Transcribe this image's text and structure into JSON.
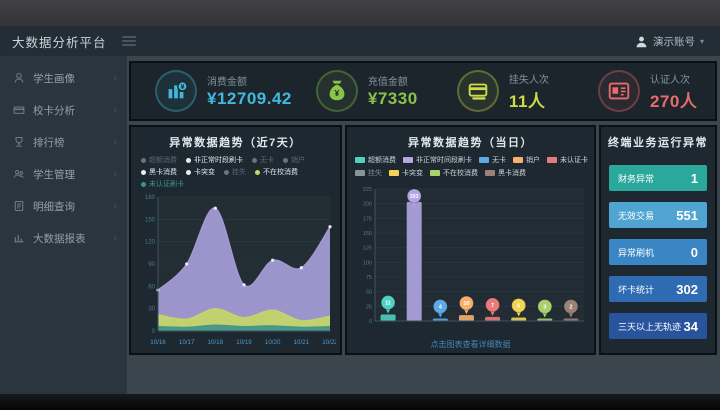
{
  "header": {
    "title": "大数据分析平台",
    "menu_icon": "hamburger-icon",
    "user": {
      "icon": "user-icon",
      "name": "演示账号",
      "caret": "▾"
    }
  },
  "sidebar": {
    "chevron": "›",
    "items": [
      {
        "label": "学生画像",
        "icon": "student-portrait-icon"
      },
      {
        "label": "校卡分析",
        "icon": "card-analysis-icon"
      },
      {
        "label": "排行榜",
        "icon": "ranking-icon"
      },
      {
        "label": "学生管理",
        "icon": "student-manage-icon"
      },
      {
        "label": "明细查询",
        "icon": "detail-query-icon"
      },
      {
        "label": "大数据报表",
        "icon": "report-icon"
      }
    ]
  },
  "kpis": [
    {
      "label": "消费金额",
      "value": "¥12709.42",
      "color": "#41b9dd",
      "icon": "consumption-icon"
    },
    {
      "label": "充值金额",
      "value": "¥7330",
      "color": "#8bc34a",
      "icon": "money-bag-icon"
    },
    {
      "label": "挂失人次",
      "value": "11人",
      "color": "#cfdc49",
      "icon": "card-loss-icon"
    },
    {
      "label": "认证人次",
      "value": "270人",
      "color": "#e96b6b",
      "icon": "id-card-icon"
    }
  ],
  "chart_data": [
    {
      "type": "area",
      "title": "异常数据趋势（近7天）",
      "x": [
        "10/16",
        "10/17",
        "10/18",
        "10/19",
        "10/20",
        "10/21",
        "10/22"
      ],
      "ylim": [
        0,
        180
      ],
      "yticks": [
        0,
        30,
        60,
        90,
        120,
        150,
        180
      ],
      "grid": true,
      "legend_position": "top",
      "legend_rows": [
        [
          {
            "label": "超额消费",
            "dot": "#66757e",
            "state": "dim"
          },
          {
            "label": "非正常时段刷卡",
            "dot": "#e8eef2",
            "state": "on"
          },
          {
            "label": "无卡",
            "dot": "#66757e",
            "state": "dim"
          },
          {
            "label": "销户",
            "dot": "#66757e",
            "state": "dim"
          }
        ],
        [
          {
            "label": "黑卡消费",
            "dot": "#e8eef2",
            "state": "on"
          },
          {
            "label": "卡突变",
            "dot": "#e8eef2",
            "state": "on"
          },
          {
            "label": "挂失",
            "dot": "#66757e",
            "state": "dim"
          },
          {
            "label": "不在校消费",
            "dot": "#c6d667",
            "state": "on"
          }
        ],
        [
          {
            "label": "未认证刷卡",
            "dot": "#3f948a",
            "state": "dim"
          }
        ]
      ],
      "series": [
        {
          "name": "非正常时段刷卡",
          "color": "#a79ed8",
          "values": [
            55,
            90,
            165,
            62,
            95,
            85,
            140
          ]
        },
        {
          "name": "不在校消费",
          "color": "#c6d667",
          "values": [
            22,
            16,
            30,
            18,
            28,
            14,
            20
          ]
        },
        {
          "name": "黑卡消费",
          "color": "#3f948a",
          "values": [
            6,
            5,
            8,
            6,
            7,
            5,
            6
          ]
        }
      ]
    },
    {
      "type": "bar",
      "title": "异常数据趋势（当日）",
      "categories": [
        "超额消费",
        "非正常时间段刷卡",
        "无卡",
        "销户",
        "未认证卡",
        "卡突变",
        "不在校消费",
        "黑卡消费"
      ],
      "values": [
        11,
        203,
        4,
        10,
        7,
        6,
        3,
        2
      ],
      "colors": [
        "#4fd0c2",
        "#b3a6e3",
        "#5ea9e8",
        "#f6b06e",
        "#e87b7b",
        "#f2d355",
        "#a9d06c",
        "#9d8178"
      ],
      "ylim": [
        0,
        225
      ],
      "yticks": [
        0,
        25,
        50,
        75,
        100,
        125,
        150,
        175,
        200,
        225
      ],
      "legend_rows": [
        [
          {
            "label": "超额消费",
            "color": "#4fd0c2"
          },
          {
            "label": "非正常时间段刷卡",
            "color": "#b3a6e3"
          },
          {
            "label": "无卡",
            "color": "#5ea9e8"
          },
          {
            "label": "销户",
            "color": "#f6b06e"
          },
          {
            "label": "未认证卡",
            "color": "#e87b7b"
          }
        ],
        [
          {
            "label": "挂失",
            "color": "#8a9299",
            "dim": true
          },
          {
            "label": "卡突变",
            "color": "#f2d355"
          },
          {
            "label": "不在校消费",
            "color": "#a9d06c"
          },
          {
            "label": "黑卡消费",
            "color": "#9d8178"
          }
        ]
      ],
      "caption": "点击图表查看详细数据"
    }
  ],
  "right_panel": {
    "title": "终端业务运行异常",
    "rows": [
      {
        "label": "财务异常",
        "value": "1",
        "color": "#2aa89b"
      },
      {
        "label": "无效交易",
        "value": "551",
        "color": "#4fa4d2"
      },
      {
        "label": "异常刷机",
        "value": "0",
        "color": "#3a86c4"
      },
      {
        "label": "坏卡统计",
        "value": "302",
        "color": "#2f6bb2"
      },
      {
        "label": "三天以上无轨迹",
        "value": "34",
        "color": "#28549e"
      }
    ]
  }
}
